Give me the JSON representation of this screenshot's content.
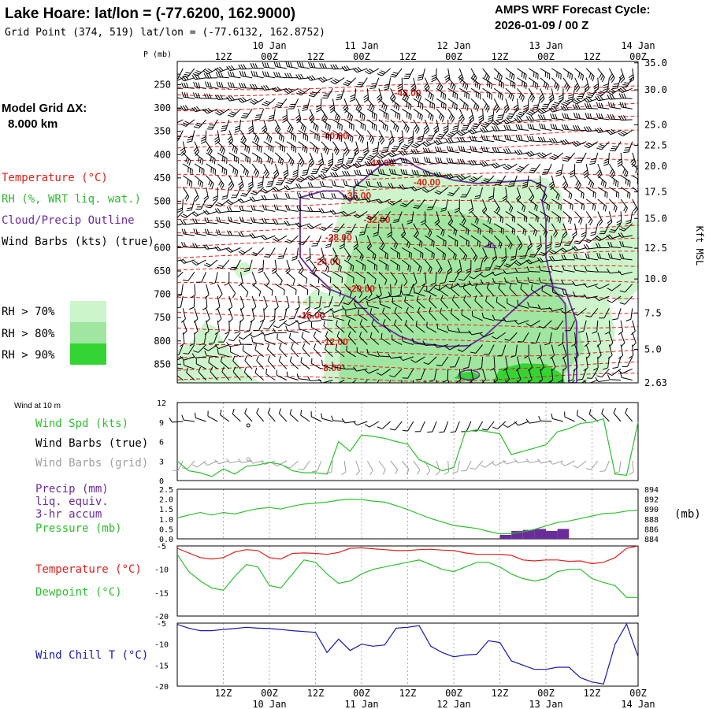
{
  "header": {
    "title": "Lake Hoare:  lat/lon = (-77.6200, 162.9000)",
    "subtitle": "Grid Point (374, 519) lat/lon = (-77.6132, 162.8752)",
    "forecast_label": "AMPS WRF Forecast Cycle:",
    "forecast_cycle": "2026-01-09 / 00  Z",
    "model_grid_label": "Model Grid ΔX:",
    "model_grid_value": "8.000 km"
  },
  "colors": {
    "temperature": "#e0201a",
    "rh": "#2db82d",
    "cloud": "#6a2c9a",
    "wind_barb": "#000000",
    "wind_barb_grid": "#a0a0a0",
    "wind_speed": "#2dbf2d",
    "precip": "#6a2c9a",
    "pressure": "#2dbf2d",
    "dewpoint": "#2dbf2d",
    "windchill": "#1a1aa8",
    "rh70": "#ccf5cc",
    "rh80": "#a0e6a0",
    "rh90": "#33d433"
  },
  "legend": {
    "temperature": "Temperature (°C)",
    "rh": "RH (%, WRT liq. wat.)",
    "cloud": "Cloud/Precip Outline",
    "wind": "Wind Barbs (kts) (true)",
    "rh70": "RH > 70%",
    "rh80": "RH > 80%",
    "rh90": "RH > 90%"
  },
  "side_labels": {
    "wind10m": "Wind at 10 m",
    "wind_spd": "Wind Spd (kts)",
    "wind_barbs_true": "Wind Barbs (true)",
    "wind_barbs_grid": "Wind Barbs (grid)",
    "precip_1": "Precip (mm)",
    "precip_2": "liq. equiv.",
    "precip_3": "3-hr accum",
    "pressure": "Pressure (mb)",
    "pressure_unit": "(mb)",
    "temperature": "Temperature (°C)",
    "dewpoint": "Dewpoint (°C)",
    "windchill": "Wind Chill T (°C)"
  },
  "chart_data": [
    {
      "type": "contour",
      "name": "upper-air cross-section",
      "x_time_labels": [
        "12Z",
        "00Z",
        "12Z",
        "00Z",
        "12Z",
        "00Z",
        "12Z",
        "00Z",
        "12Z",
        "00Z"
      ],
      "x_date_labels": [
        "10 Jan",
        "11 Jan",
        "12 Jan",
        "13 Jan",
        "14 Jan"
      ],
      "x_date_positions_hours": [
        24,
        48,
        72,
        96,
        120
      ],
      "x_time_positions_hours": [
        12,
        24,
        36,
        48,
        60,
        72,
        84,
        96,
        108,
        120
      ],
      "xlim_hours": [
        0,
        120
      ],
      "ylabel": "P (mb)",
      "pressure_ticks": [
        250,
        300,
        350,
        400,
        450,
        500,
        550,
        600,
        650,
        700,
        750,
        800,
        850
      ],
      "ylim_mb": [
        200,
        890
      ],
      "right_axis_label": "Kft MSL",
      "height_ticks": [
        {
          "label": "35.0",
          "p": 203
        },
        {
          "label": "30.0",
          "p": 261
        },
        {
          "label": "25.0",
          "p": 336
        },
        {
          "label": "22.5",
          "p": 380
        },
        {
          "label": "20.0",
          "p": 425
        },
        {
          "label": "17.5",
          "p": 480
        },
        {
          "label": "15.0",
          "p": 537
        },
        {
          "label": "12.5",
          "p": 601
        },
        {
          "label": "10.0",
          "p": 667
        },
        {
          "label": "7.5",
          "p": 740
        },
        {
          "label": "5.0",
          "p": 818
        },
        {
          "label": "2.63",
          "p": 890
        }
      ],
      "temperature_labels": [
        {
          "text": "-48.00",
          "x": 60,
          "p": 268
        },
        {
          "text": "-40.00",
          "x": 41,
          "p": 360
        },
        {
          "text": "-44.00",
          "x": 53,
          "p": 418
        },
        {
          "text": "-40.00",
          "x": 65,
          "p": 460
        },
        {
          "text": "-36.00",
          "x": 47,
          "p": 488
        },
        {
          "text": "-32.00",
          "x": 52,
          "p": 540
        },
        {
          "text": "-28.00",
          "x": 42,
          "p": 578
        },
        {
          "text": "-24.00",
          "x": 39,
          "p": 630
        },
        {
          "text": "-20.00",
          "x": 48,
          "p": 688
        },
        {
          "text": "-16.00",
          "x": 35,
          "p": 745
        },
        {
          "text": "-12.00",
          "x": 41,
          "p": 802
        },
        {
          "text": "-8.00",
          "x": 40,
          "p": 858
        }
      ]
    },
    {
      "type": "line",
      "name": "10 m wind speed",
      "title": "Wind at 10 m",
      "ylabel": "Wind Spd (kts)",
      "ylim": [
        0,
        12
      ],
      "yticks": [
        0,
        3,
        6,
        9,
        12
      ],
      "xlim_hours": [
        0,
        120
      ],
      "x": [
        0,
        3,
        6,
        9,
        12,
        15,
        18,
        21,
        24,
        27,
        30,
        33,
        36,
        39,
        42,
        45,
        48,
        51,
        54,
        57,
        60,
        63,
        66,
        69,
        72,
        75,
        78,
        81,
        84,
        87,
        90,
        93,
        96,
        99,
        102,
        105,
        108,
        111,
        114,
        117,
        120
      ],
      "values": [
        3.0,
        1.5,
        1.2,
        0.6,
        1.8,
        1.0,
        2.2,
        2.4,
        2.8,
        2.5,
        1.5,
        1.2,
        1.2,
        1.0,
        6.0,
        4.5,
        7.0,
        6.8,
        6.5,
        6.0,
        5.6,
        3.2,
        2.4,
        1.5,
        2.0,
        7.5,
        7.8,
        7.5,
        7.2,
        4.0,
        4.5,
        5.0,
        5.5,
        7.5,
        8.0,
        8.8,
        9.0,
        9.5,
        1.0,
        0.8,
        9.0
      ]
    },
    {
      "type": "bar+line",
      "name": "precip and pressure",
      "ylabel_left": "Precip (mm)",
      "ylim_precip": [
        0,
        2.5
      ],
      "yticks_precip": [
        0.0,
        0.5,
        1.0,
        1.5,
        2.0,
        2.5
      ],
      "ylim_pressure": [
        884,
        894
      ],
      "yticks_pressure": [
        884,
        886,
        888,
        890,
        892,
        894
      ],
      "xlim_hours": [
        0,
        120
      ],
      "precip_x_start": [
        84,
        87,
        90,
        93,
        96,
        99
      ],
      "precip_values": [
        0.2,
        0.4,
        0.45,
        0.5,
        0.4,
        0.5
      ],
      "pressure_x": [
        0,
        3,
        6,
        9,
        12,
        15,
        18,
        21,
        24,
        27,
        30,
        33,
        36,
        39,
        42,
        45,
        48,
        51,
        54,
        57,
        60,
        63,
        66,
        69,
        72,
        75,
        78,
        81,
        84,
        87,
        90,
        93,
        96,
        99,
        102,
        105,
        108,
        111,
        114,
        117,
        120
      ],
      "pressure_values": [
        888.2,
        888.8,
        889.3,
        888.8,
        889.3,
        889.0,
        889.6,
        890.1,
        890.3,
        890.0,
        890.6,
        891.0,
        891.2,
        891.4,
        891.8,
        892.0,
        891.9,
        891.6,
        891.4,
        890.7,
        889.9,
        889.0,
        888.1,
        887.4,
        886.7,
        886.4,
        886.1,
        885.5,
        885.0,
        885.1,
        885.4,
        885.9,
        886.6,
        887.3,
        887.6,
        888.1,
        888.6,
        889.1,
        889.2,
        889.6,
        889.8
      ]
    },
    {
      "type": "line",
      "name": "temperature and dewpoint",
      "ylim": [
        -20,
        -5
      ],
      "yticks": [
        -5,
        -10,
        -15,
        -20
      ],
      "xlim_hours": [
        0,
        120
      ],
      "x": [
        0,
        3,
        6,
        9,
        12,
        15,
        18,
        21,
        24,
        27,
        30,
        33,
        36,
        39,
        42,
        45,
        48,
        51,
        54,
        57,
        60,
        63,
        66,
        69,
        72,
        75,
        78,
        81,
        84,
        87,
        90,
        93,
        96,
        99,
        102,
        105,
        108,
        111,
        114,
        117,
        120
      ],
      "series": [
        {
          "name": "Temperature",
          "values": [
            -5.5,
            -6.5,
            -7.5,
            -7.8,
            -7.5,
            -6.3,
            -5.8,
            -6.0,
            -7.5,
            -7.8,
            -6.6,
            -6.5,
            -6.6,
            -6.8,
            -6.4,
            -5.5,
            -5.4,
            -5.6,
            -5.8,
            -6.0,
            -6.0,
            -5.8,
            -5.7,
            -5.9,
            -6.0,
            -6.5,
            -6.8,
            -6.8,
            -6.8,
            -7.0,
            -8.0,
            -8.2,
            -8.0,
            -8.0,
            -8.3,
            -8.2,
            -8.8,
            -8.5,
            -7.5,
            -5.5,
            -5.0
          ]
        },
        {
          "name": "Dewpoint",
          "values": [
            -6.8,
            -10.5,
            -12.5,
            -14.0,
            -14.5,
            -11.5,
            -9.0,
            -9.5,
            -13.5,
            -14.0,
            -11.0,
            -8.0,
            -8.5,
            -11.0,
            -13.0,
            -12.5,
            -11.0,
            -10.0,
            -9.5,
            -9.0,
            -8.5,
            -8.0,
            -9.0,
            -10.0,
            -10.5,
            -9.5,
            -8.5,
            -8.5,
            -9.5,
            -11.0,
            -12.0,
            -12.5,
            -12.0,
            -10.5,
            -10.0,
            -10.0,
            -12.0,
            -12.8,
            -13.5,
            -16.0,
            -16.0
          ]
        }
      ]
    },
    {
      "type": "line",
      "name": "wind chill",
      "ylabel": "Wind Chill T (°C)",
      "ylim": [
        -20,
        -5
      ],
      "yticks": [
        -5,
        -10,
        -15,
        -20
      ],
      "xlim_hours": [
        0,
        120
      ],
      "x": [
        0,
        3,
        6,
        9,
        12,
        15,
        18,
        21,
        24,
        27,
        30,
        33,
        36,
        39,
        42,
        45,
        48,
        51,
        54,
        57,
        60,
        63,
        66,
        69,
        72,
        75,
        78,
        81,
        84,
        87,
        90,
        93,
        96,
        99,
        102,
        105,
        108,
        111,
        114,
        117,
        120
      ],
      "values": [
        -5.3,
        -6.2,
        -6.8,
        -6.8,
        -6.5,
        -6.3,
        -6.0,
        -6.2,
        -6.3,
        -6.5,
        -6.8,
        -7.0,
        -7.2,
        -12.0,
        -8.8,
        -11.5,
        -10.0,
        -10.5,
        -10.2,
        -6.2,
        -6.0,
        -5.6,
        -10.5,
        -12.0,
        -13.0,
        -12.6,
        -12.4,
        -9.2,
        -9.6,
        -14.0,
        -15.0,
        -16.0,
        -16.0,
        -15.5,
        -15.5,
        -18.0,
        -19.0,
        -19.5,
        -10.0,
        -5.2,
        -13.0
      ]
    }
  ]
}
